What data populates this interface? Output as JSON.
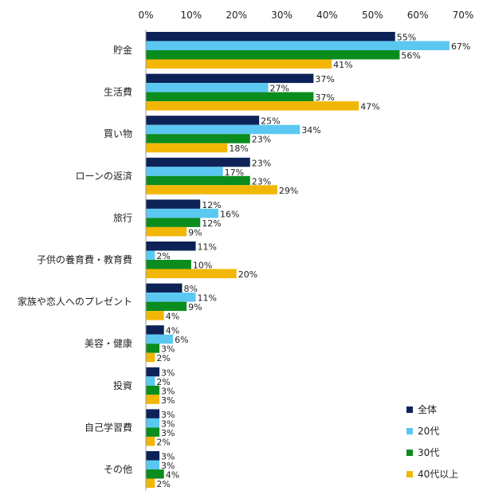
{
  "chart_data": {
    "type": "bar",
    "orientation": "horizontal",
    "xlim": [
      0,
      70
    ],
    "x_ticks": [
      0,
      10,
      20,
      30,
      40,
      50,
      60,
      70
    ],
    "tick_suffix": "%",
    "grid": false,
    "legend_position": "bottom-right",
    "categories": [
      "貯金",
      "生活費",
      "買い物",
      "ローンの返済",
      "旅行",
      "子供の養育費・教育費",
      "家族や恋人へのプレゼント",
      "美容・健康",
      "投資",
      "自己学習費",
      "その他"
    ],
    "series": [
      {
        "name": "全体",
        "color": "#0d2357",
        "values": [
          55,
          37,
          25,
          23,
          12,
          11,
          8,
          4,
          3,
          3,
          3
        ]
      },
      {
        "name": "20代",
        "color": "#5bc8f2",
        "values": [
          67,
          27,
          34,
          17,
          16,
          2,
          11,
          6,
          2,
          3,
          3
        ]
      },
      {
        "name": "30代",
        "color": "#0a8c1e",
        "values": [
          56,
          37,
          23,
          23,
          12,
          10,
          9,
          3,
          3,
          3,
          4
        ]
      },
      {
        "name": "40代以上",
        "color": "#f2b705",
        "values": [
          41,
          47,
          18,
          29,
          9,
          20,
          4,
          2,
          3,
          2,
          2
        ]
      }
    ]
  }
}
